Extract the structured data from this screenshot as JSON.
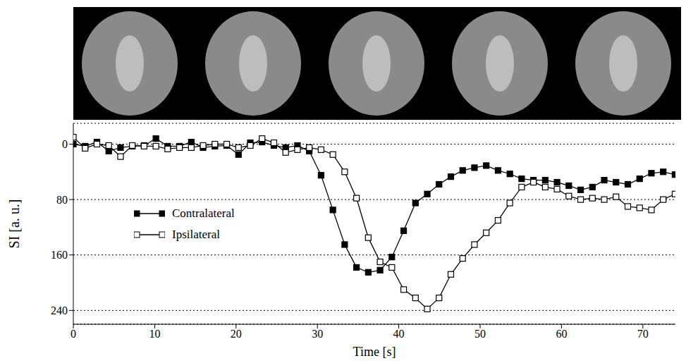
{
  "chart_data": {
    "type": "line",
    "x_label": "Time [s]",
    "y_label": "SI [a. u.]",
    "x": [
      0,
      1.45,
      2.9,
      4.35,
      5.8,
      7.25,
      8.7,
      10.15,
      11.6,
      13.05,
      14.5,
      15.95,
      17.4,
      18.85,
      20.3,
      21.75,
      23.2,
      24.65,
      26.1,
      27.55,
      29.0,
      30.45,
      31.9,
      33.35,
      34.8,
      36.25,
      37.7,
      39.15,
      40.6,
      42.05,
      43.5,
      44.95,
      46.4,
      47.85,
      49.3,
      50.75,
      52.2,
      53.65,
      55.1,
      56.55,
      58.0,
      59.45,
      60.9,
      62.35,
      63.8,
      65.25,
      66.7,
      68.15,
      69.6,
      71.05,
      72.5,
      73.95
    ],
    "series": [
      {
        "name": "Contralateral",
        "color": "#000000",
        "marker": "filled_square",
        "values": [
          0,
          3,
          -3,
          10,
          5,
          3,
          2,
          -8,
          3,
          3,
          -3,
          5,
          3,
          2,
          15,
          -2,
          -3,
          2,
          5,
          2,
          10,
          45,
          95,
          145,
          178,
          185,
          182,
          163,
          125,
          85,
          72,
          58,
          47,
          38,
          34,
          31,
          38,
          43,
          50,
          52,
          52,
          55,
          60,
          66,
          62,
          52,
          55,
          58,
          50,
          42,
          40,
          44
        ]
      },
      {
        "name": "Ipsilateral",
        "color": "#000000",
        "marker": "open_square",
        "values": [
          -10,
          6,
          0,
          2,
          18,
          2,
          3,
          3,
          7,
          5,
          5,
          2,
          0,
          0,
          5,
          2,
          -8,
          -2,
          12,
          8,
          5,
          8,
          15,
          40,
          78,
          135,
          170,
          178,
          210,
          222,
          238,
          222,
          188,
          165,
          145,
          128,
          110,
          85,
          62,
          55,
          62,
          65,
          75,
          80,
          78,
          80,
          76,
          90,
          92,
          95,
          80,
          72
        ]
      }
    ],
    "xlim": [
      0,
      74
    ],
    "xticks": [
      0,
      10,
      20,
      30,
      40,
      50,
      60,
      70
    ],
    "ylim": [
      -30,
      260
    ],
    "yticks": [
      0,
      80,
      160,
      240
    ],
    "grid": true,
    "legend": "left"
  }
}
